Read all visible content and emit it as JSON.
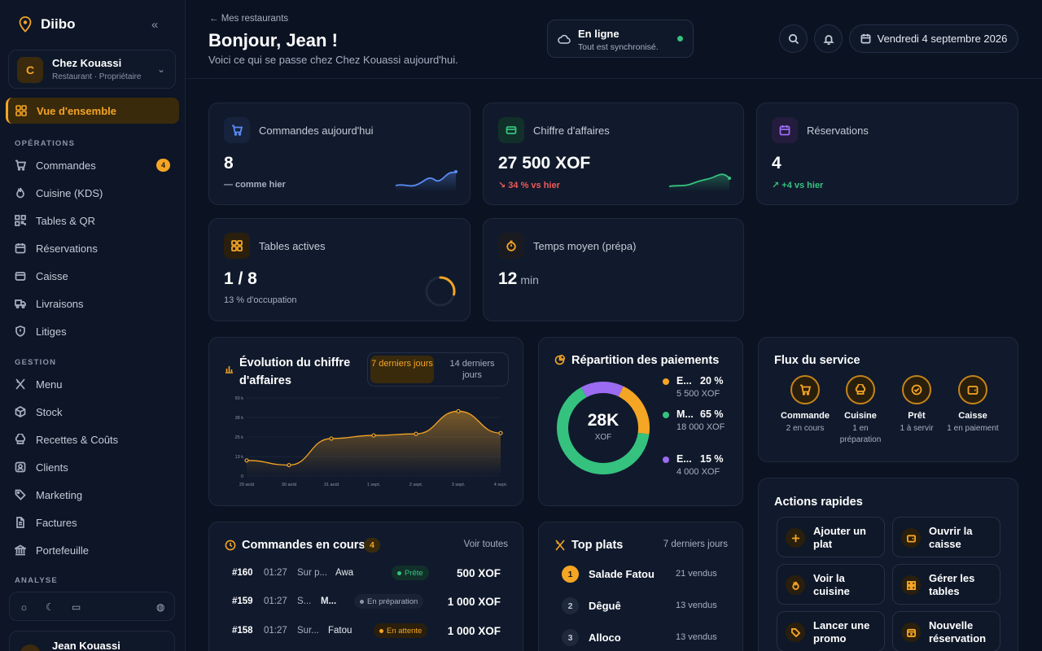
{
  "sidebar": {
    "brand": "Diibo",
    "org": {
      "initial": "C",
      "name": "Chez Kouassi",
      "role": "Restaurant · Propriétaire"
    },
    "active": "Vue d'ensemble",
    "sections": {
      "operations": "OPÉRATIONS",
      "gestion": "GESTION",
      "analyse": "ANALYSE"
    },
    "ops": [
      {
        "label": "Commandes",
        "badge": "4"
      },
      {
        "label": "Cuisine (KDS)"
      },
      {
        "label": "Tables & QR"
      },
      {
        "label": "Réservations"
      },
      {
        "label": "Caisse"
      },
      {
        "label": "Livraisons"
      },
      {
        "label": "Litiges"
      }
    ],
    "gestion": [
      {
        "label": "Menu"
      },
      {
        "label": "Stock"
      },
      {
        "label": "Recettes & Coûts"
      },
      {
        "label": "Clients"
      },
      {
        "label": "Marketing"
      },
      {
        "label": "Factures"
      },
      {
        "label": "Portefeuille"
      }
    ],
    "user": "Jean Kouassi"
  },
  "header": {
    "back": "Mes restaurants",
    "greeting": "Bonjour, Jean !",
    "subtitle": "Voici ce qui se passe chez Chez Kouassi aujourd'hui.",
    "status_title": "En ligne",
    "status_sub": "Tout est synchronisé.",
    "date": "Vendredi 4 septembre 2026"
  },
  "kpis": {
    "orders": {
      "label": "Commandes aujourd'hui",
      "value": "8",
      "sub": "— comme hier"
    },
    "revenue": {
      "label": "Chiffre d'affaires",
      "value": "27 500 XOF",
      "sub": "↘ 34 % vs hier"
    },
    "reservations": {
      "label": "Réservations",
      "value": "4",
      "sub": "↗ +4 vs hier"
    },
    "tables": {
      "label": "Tables actives",
      "value": "1 / 8",
      "sub": "13 % d'occupation",
      "occupancy": 0.13
    },
    "prep": {
      "label": "Temps moyen (prépa)",
      "value": "12",
      "unit": "min"
    }
  },
  "revenue_chart": {
    "title": "Évolution du chiffre d'affaires",
    "tab_active": "7 derniers jours",
    "tab_other": "14 derniers jours",
    "chart_data": {
      "type": "area",
      "categories": [
        "29 août",
        "30 août",
        "31 août",
        "1 sept.",
        "2 sept.",
        "3 sept.",
        "4 sept."
      ],
      "values": [
        10000,
        7000,
        24000,
        26000,
        27000,
        41500,
        27500
      ],
      "yticks": [
        "0",
        "13 k",
        "25 k",
        "38 k",
        "50 k"
      ],
      "ylim": [
        0,
        50000
      ],
      "color": "#f5a524"
    }
  },
  "payments": {
    "title": "Répartition des paiements",
    "center_value": "28K",
    "center_unit": "XOF",
    "items": [
      {
        "name": "E...",
        "pct": "20 %",
        "amount": "5 500 XOF",
        "value": 20,
        "color": "#f5a524"
      },
      {
        "name": "M...",
        "pct": "65 %",
        "amount": "18 000 XOF",
        "value": 65,
        "color": "#35c27f"
      },
      {
        "name": "E...",
        "pct": "15 %",
        "amount": "4 000 XOF",
        "value": 15,
        "color": "#9b6bf2"
      }
    ]
  },
  "flow": {
    "title": "Flux du service",
    "steps": [
      {
        "label": "Commande",
        "sub": "2 en cours"
      },
      {
        "label": "Cuisine",
        "sub": "1 en préparation"
      },
      {
        "label": "Prêt",
        "sub": "1 à servir"
      },
      {
        "label": "Caisse",
        "sub": "1 en paiement"
      }
    ]
  },
  "quick": {
    "title": "Actions rapides",
    "actions": [
      "Ajouter un plat",
      "Ouvrir la caisse",
      "Voir la cuisine",
      "Gérer les tables",
      "Lancer une promo",
      "Nouvelle réservation"
    ]
  },
  "orders_live": {
    "title": "Commandes en cours",
    "count": "4",
    "link": "Voir toutes",
    "rows": [
      {
        "id": "#160",
        "time": "01:27",
        "type": "Sur p...",
        "customer": "Awa",
        "status": "Prête",
        "amount": "500 XOF"
      },
      {
        "id": "#159",
        "time": "01:27",
        "type": "S...",
        "customer": "M...",
        "status": "En préparation",
        "amount": "1 000 XOF"
      },
      {
        "id": "#158",
        "time": "01:27",
        "type": "Sur...",
        "customer": "Fatou",
        "status": "En attente",
        "amount": "1 000 XOF"
      }
    ]
  },
  "top_dishes": {
    "title": "Top plats",
    "period": "7 derniers jours",
    "items": [
      {
        "rank": "1",
        "name": "Salade Fatou",
        "sold": "21 vendus"
      },
      {
        "rank": "2",
        "name": "Dêguê",
        "sold": "13 vendus"
      },
      {
        "rank": "3",
        "name": "Alloco",
        "sold": "13 vendus"
      }
    ]
  }
}
